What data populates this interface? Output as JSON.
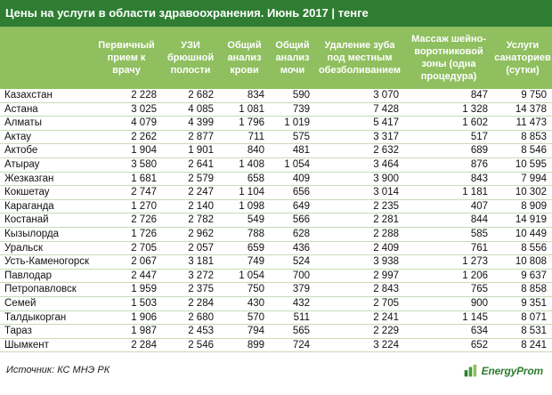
{
  "title": "Цены на услуги в области здравоохранения. Июнь 2017 | тенге",
  "columns": [
    "",
    "Первичный прием к врачу",
    "УЗИ брюшной полости",
    "Общий анализ крови",
    "Общий анализ мочи",
    "Удаление зуба под местным обезболиванием",
    "Массаж шейно-воротниковой зоны (одна процедура)",
    "Услуги санаториев (сутки)"
  ],
  "rows": [
    {
      "name": "Казахстан",
      "v": [
        "2 228",
        "2 682",
        "834",
        "590",
        "3 070",
        "847",
        "9 750"
      ]
    },
    {
      "name": "Астана",
      "v": [
        "3 025",
        "4 085",
        "1 081",
        "739",
        "7 428",
        "1 328",
        "14 378"
      ]
    },
    {
      "name": "Алматы",
      "v": [
        "4 079",
        "4 399",
        "1 796",
        "1 019",
        "5 417",
        "1 602",
        "11 473"
      ]
    },
    {
      "name": "Актау",
      "v": [
        "2 262",
        "2 877",
        "711",
        "575",
        "3 317",
        "517",
        "8 853"
      ]
    },
    {
      "name": "Актобе",
      "v": [
        "1 904",
        "1 901",
        "840",
        "481",
        "2 632",
        "689",
        "8 546"
      ]
    },
    {
      "name": "Атырау",
      "v": [
        "3 580",
        "2 641",
        "1 408",
        "1 054",
        "3 464",
        "876",
        "10 595"
      ]
    },
    {
      "name": "Жезказган",
      "v": [
        "1 681",
        "2 579",
        "658",
        "409",
        "3 900",
        "843",
        "7 994"
      ]
    },
    {
      "name": "Кокшетау",
      "v": [
        "2 747",
        "2 247",
        "1 104",
        "656",
        "3 014",
        "1 181",
        "10 302"
      ]
    },
    {
      "name": "Караганда",
      "v": [
        "1 270",
        "2 140",
        "1 098",
        "649",
        "2 235",
        "407",
        "8 909"
      ]
    },
    {
      "name": "Костанай",
      "v": [
        "2 726",
        "2 782",
        "549",
        "566",
        "2 281",
        "844",
        "14 919"
      ]
    },
    {
      "name": "Кызылорда",
      "v": [
        "1 726",
        "2 962",
        "788",
        "628",
        "2 288",
        "585",
        "10 449"
      ]
    },
    {
      "name": "Уральск",
      "v": [
        "2 705",
        "2 057",
        "659",
        "436",
        "2 409",
        "761",
        "8 556"
      ]
    },
    {
      "name": "Усть-Каменогорск",
      "v": [
        "2 067",
        "3 181",
        "749",
        "524",
        "3 938",
        "1 273",
        "10 808"
      ]
    },
    {
      "name": "Павлодар",
      "v": [
        "2 447",
        "3 272",
        "1 054",
        "700",
        "2 997",
        "1 206",
        "9 637"
      ]
    },
    {
      "name": "Петропавловск",
      "v": [
        "1 959",
        "2 375",
        "750",
        "379",
        "2 843",
        "765",
        "8 858"
      ]
    },
    {
      "name": "Семей",
      "v": [
        "1 503",
        "2 284",
        "430",
        "432",
        "2 705",
        "900",
        "9 351"
      ]
    },
    {
      "name": "Талдыкорган",
      "v": [
        "1 906",
        "2 680",
        "570",
        "511",
        "2 241",
        "1 145",
        "8 071"
      ]
    },
    {
      "name": "Тараз",
      "v": [
        "1 987",
        "2 453",
        "794",
        "565",
        "2 229",
        "634",
        "8 531"
      ]
    },
    {
      "name": "Шымкент",
      "v": [
        "2 284",
        "2 546",
        "899",
        "724",
        "3 224",
        "652",
        "8 241"
      ]
    }
  ],
  "source": "Источник: КС МНЭ РК",
  "logo": {
    "text": "EnergyProm",
    "icon": "energyprom-logo-icon",
    "color": "#2e7d32"
  },
  "colors": {
    "title_bg": "#2e7d32",
    "header_bg": "#8fbf5f",
    "row_border": "#c8dcb6"
  }
}
